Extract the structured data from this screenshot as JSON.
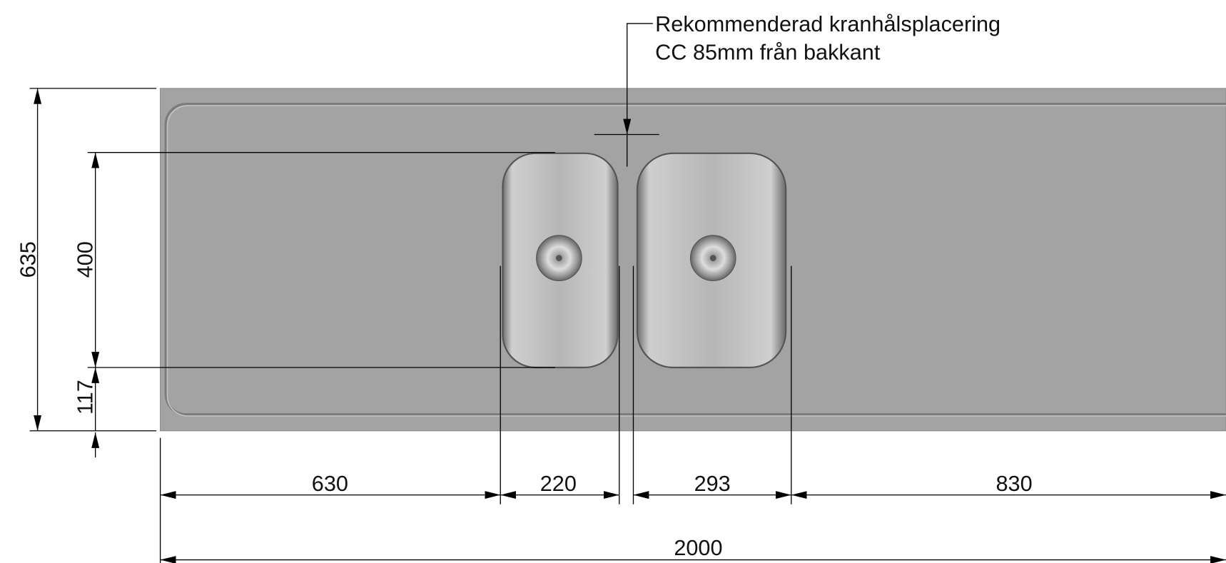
{
  "annotation": {
    "lines": [
      "Rekommenderad kranhålsplacering",
      "CC 85mm från bakkant"
    ]
  },
  "dimensions": {
    "height": 635,
    "bowl_depth": 400,
    "front_offset": 117,
    "left": 630,
    "bowl1_width": 220,
    "bowl2_width": 293,
    "right": 830,
    "total": 2000
  }
}
